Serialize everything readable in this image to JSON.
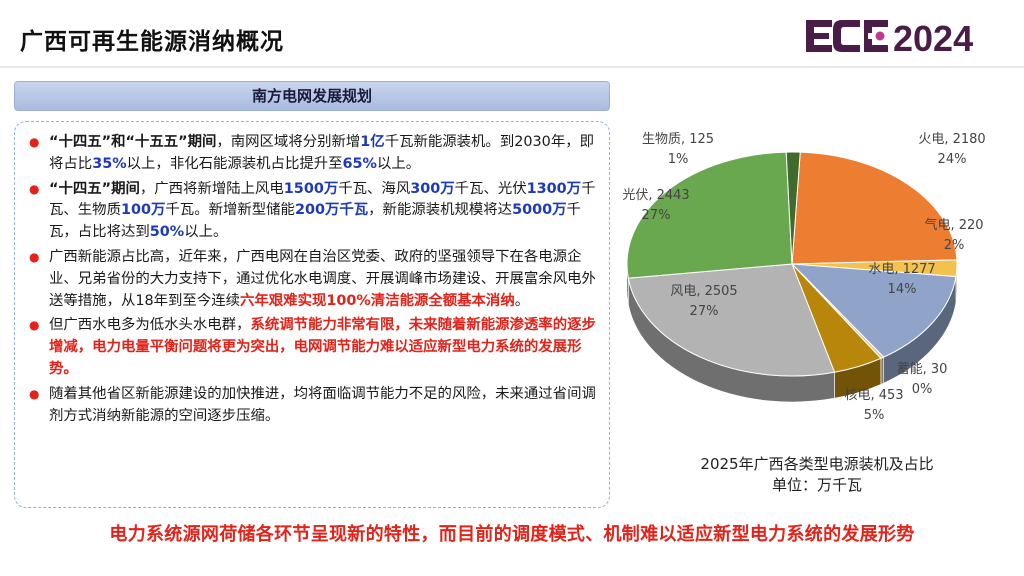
{
  "header": {
    "title": "广西可再生能源消纳概况",
    "logo_text": "ECE2024"
  },
  "section": {
    "title": "南方电网发展规划"
  },
  "bullets": [
    {
      "segs": [
        {
          "t": "“十四五”和“十五五”期间",
          "c": "b"
        },
        {
          "t": "，南网区域将分别新增"
        },
        {
          "t": "1亿",
          "c": "blue"
        },
        {
          "t": "千瓦新能源装机。到2030年，即将占比"
        },
        {
          "t": "35%",
          "c": "blue"
        },
        {
          "t": "以上，非化石能源装机占比提升至"
        },
        {
          "t": "65%",
          "c": "blue"
        },
        {
          "t": "以上。"
        }
      ]
    },
    {
      "segs": [
        {
          "t": "“十四五”期间",
          "c": "b"
        },
        {
          "t": "，广西将新增陆上风电"
        },
        {
          "t": "1500万",
          "c": "blue"
        },
        {
          "t": "千瓦、海风"
        },
        {
          "t": "300万",
          "c": "blue"
        },
        {
          "t": "千瓦、光伏"
        },
        {
          "t": "1300万",
          "c": "blue"
        },
        {
          "t": "千瓦、生物质"
        },
        {
          "t": "100万",
          "c": "blue"
        },
        {
          "t": "千瓦。新增新型储能"
        },
        {
          "t": "200万千瓦",
          "c": "blue"
        },
        {
          "t": "，新能源装机规模将达"
        },
        {
          "t": "5000万",
          "c": "blue"
        },
        {
          "t": "千瓦，占比将达到"
        },
        {
          "t": "50%",
          "c": "blue"
        },
        {
          "t": "以上。"
        }
      ]
    },
    {
      "segs": [
        {
          "t": "广西新能源占比高，近年来，广西电网在自治区党委、政府的坚强领导下在各电源企业、兄弟省份的大力支持下，通过优化水电调度、开展调峰市场建设、开展富余风电外送等措施，从18年到至今连续"
        },
        {
          "t": "六年艰难实现100%清洁能源全额基本消纳",
          "c": "red"
        },
        {
          "t": "。"
        }
      ]
    },
    {
      "segs": [
        {
          "t": "但广西水电多为低水头水电群，"
        },
        {
          "t": "系统调节能力非常有限，未来随着新能源渗透率的逐步增减，电力电量平衡问题将更为突出，电网调节能力难以适应新型电力系统的发展形势。",
          "c": "red"
        }
      ]
    },
    {
      "segs": [
        {
          "t": "随着其他省区新能源建设的加快推进，均将面临调节能力不足的风险，未来通过省间调剂方式消纳新能源的空间逐步压缩。"
        }
      ]
    }
  ],
  "chart_data": {
    "type": "pie",
    "title": "2025年广西各类型电源装机及占比",
    "subtitle": "单位：万千瓦",
    "slices": [
      {
        "name": "火电",
        "value": 2180,
        "pct": "24%",
        "color": "#ed7d31"
      },
      {
        "name": "气电",
        "value": 220,
        "pct": "2%",
        "color": "#f2c14e"
      },
      {
        "name": "水电",
        "value": 1277,
        "pct": "14%",
        "color": "#8fa4c8"
      },
      {
        "name": "蓄能",
        "value": 30,
        "pct": "0%",
        "color": "#d9c79a"
      },
      {
        "name": "核电",
        "value": 453,
        "pct": "5%",
        "color": "#b8860b"
      },
      {
        "name": "风电",
        "value": 2505,
        "pct": "27%",
        "color": "#b3b3b3"
      },
      {
        "name": "光伏",
        "value": 2443,
        "pct": "27%",
        "color": "#6aa84f"
      },
      {
        "name": "生物质",
        "value": 125,
        "pct": "1%",
        "color": "#3f6b2f"
      }
    ]
  },
  "footer": {
    "text": "电力系统源网荷储各环节呈现新的特性，而目前的调度模式、机制难以适应新型电力系统的发展形势"
  }
}
